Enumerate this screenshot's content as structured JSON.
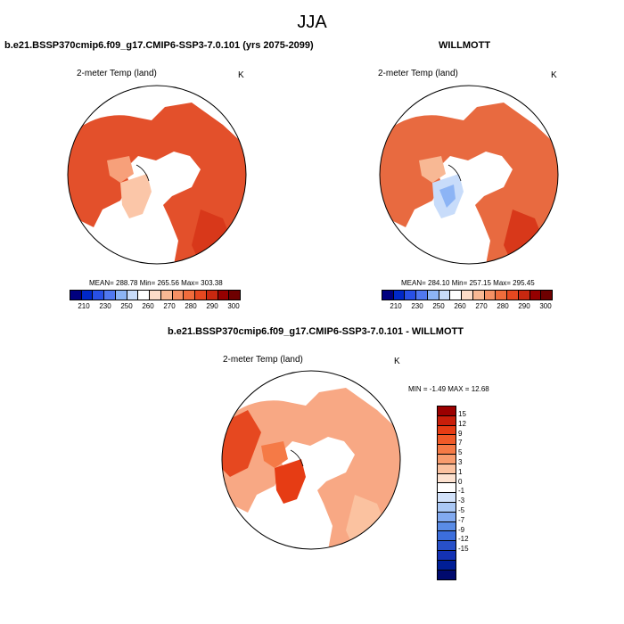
{
  "page": {
    "title": "JJA"
  },
  "panels": [
    {
      "title": "b.e21.BSSP370cmip6.f09_g17.CMIP6-SSP3-7.0.101 (yrs 2075-2099)",
      "variable": "2-meter Temp (land)",
      "units": "K",
      "stats": "MEAN= 288.78  Min= 265.56  Max= 303.38"
    },
    {
      "title": "WILLMOTT",
      "variable": "2-meter Temp (land)",
      "units": "K",
      "stats": "MEAN= 284.10  Min= 257.15  Max= 295.45"
    },
    {
      "title": "b.e21.BSSP370cmip6.f09_g17.CMIP6-SSP3-7.0.101 - WILLMOTT",
      "variable": "2-meter Temp (land)",
      "units": "K",
      "stats": "MIN =  -1.49 MAX =  12.68"
    }
  ],
  "abs_colorbar": {
    "colors": [
      "#00007f",
      "#0028c8",
      "#2850e6",
      "#5078f0",
      "#8cb4f5",
      "#c8dcfa",
      "#ffffff",
      "#fcdcc8",
      "#f8b894",
      "#f59064",
      "#f06c3c",
      "#e64820",
      "#c82810",
      "#960000",
      "#6e0000"
    ],
    "labels": [
      "210",
      "230",
      "250",
      "260",
      "270",
      "280",
      "290",
      "300"
    ]
  },
  "diff_colorbar": {
    "colors": [
      "#9b0000",
      "#c81e0a",
      "#e63c14",
      "#f05a28",
      "#f57a46",
      "#f89c6e",
      "#fbc2a0",
      "#fde2d0",
      "#ffffff",
      "#d2e2fa",
      "#aac8f5",
      "#82aaf0",
      "#5a8ce6",
      "#3c6edc",
      "#2850c8",
      "#1432b4",
      "#001e96",
      "#000a6e"
    ],
    "labels": [
      "15",
      "12",
      "9",
      "7",
      "5",
      "3",
      "1",
      "0",
      "-1",
      "-3",
      "-5",
      "-7",
      "-9",
      "-12",
      "-15"
    ]
  }
}
